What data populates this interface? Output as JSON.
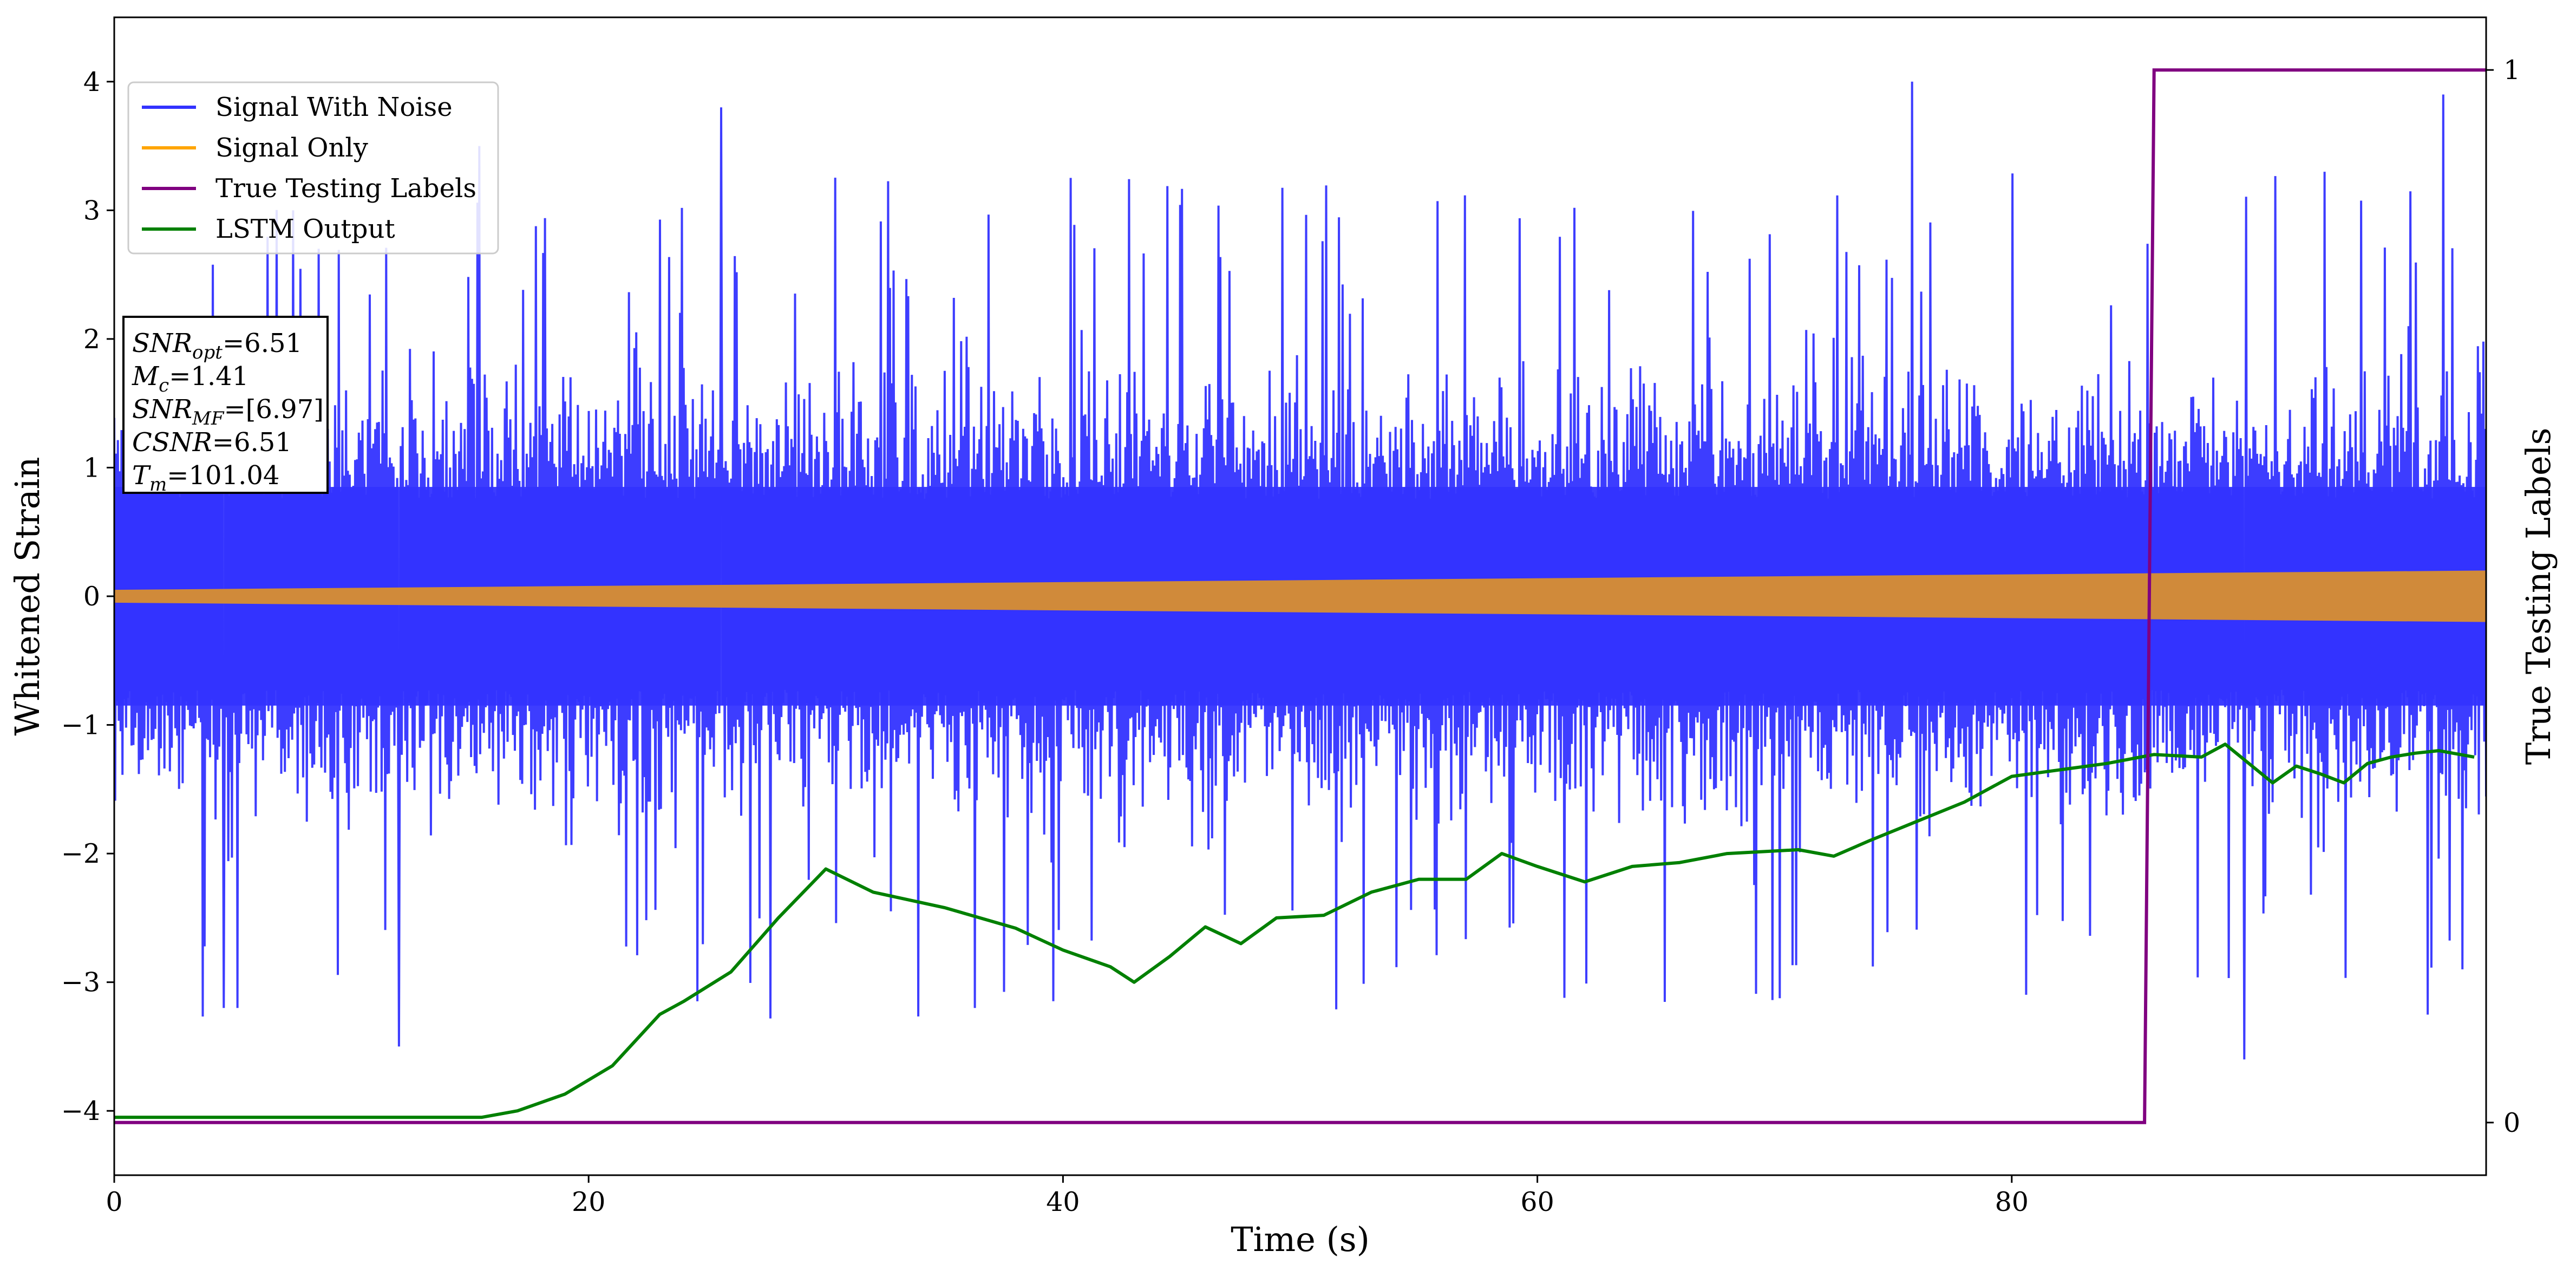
{
  "chart_data": {
    "type": "line",
    "xlabel": "Time (s)",
    "ylabel": "Whitened Strain",
    "y2label": "True Testing Labels",
    "xlim": [
      0,
      100
    ],
    "ylim": [
      -4.5,
      4.5
    ],
    "y2lim": [
      -0.05,
      1.05
    ],
    "x_ticks": [
      0,
      20,
      40,
      60,
      80
    ],
    "x_tick_labels": [
      "0",
      "20",
      "40",
      "60",
      "80"
    ],
    "y_ticks": [
      -4,
      -3,
      -2,
      -1,
      0,
      1,
      2,
      3,
      4
    ],
    "y_tick_labels": [
      "−4",
      "−3",
      "−2",
      "−1",
      "0",
      "1",
      "2",
      "3",
      "4"
    ],
    "y2_ticks": [
      0,
      1
    ],
    "y2_tick_labels": [
      "0",
      "1"
    ],
    "grid": false,
    "legend_position": "top-left",
    "series": [
      {
        "name": "Signal With Noise",
        "color": "#3333ff",
        "axis": "left",
        "description_level": "dense noise band",
        "typical_range": [
          -1.7,
          1.9
        ],
        "spikes": [
          [
            4.6,
            -3.2
          ],
          [
            5.2,
            -3.2
          ],
          [
            12.0,
            -3.5
          ],
          [
            15.4,
            3.5
          ],
          [
            25.6,
            3.8
          ],
          [
            36.3,
            -3.2
          ],
          [
            75.8,
            4.0
          ],
          [
            89.8,
            -3.6
          ],
          [
            93.2,
            3.3
          ],
          [
            98.2,
            3.9
          ],
          [
            99.0,
            -2.9
          ]
        ]
      },
      {
        "name": "Signal Only",
        "color": "#ffa500",
        "axis": "left",
        "amplitude_start": 0.05,
        "amplitude_end": 0.2
      },
      {
        "name": "True Testing Labels",
        "color": "#800080",
        "axis": "right",
        "x": [
          0,
          85.6,
          86.0,
          100
        ],
        "y": [
          0,
          0,
          1,
          1
        ]
      },
      {
        "name": "LSTM Output",
        "color": "#008000",
        "axis": "left",
        "x": [
          0,
          15.5,
          17,
          19,
          21,
          23,
          24,
          26,
          28,
          30,
          32,
          35,
          38,
          40,
          42,
          43,
          44.5,
          46,
          47.5,
          49,
          51,
          53,
          55,
          57,
          58.5,
          60,
          62,
          64,
          66,
          68,
          70,
          71,
          72.5,
          74,
          76,
          78,
          80,
          82,
          84,
          86,
          88,
          89,
          90,
          91,
          92,
          93,
          94,
          95,
          96,
          97,
          98,
          99.5
        ],
        "y": [
          -4.05,
          -4.05,
          -4.0,
          -3.87,
          -3.65,
          -3.25,
          -3.15,
          -2.92,
          -2.5,
          -2.12,
          -2.3,
          -2.42,
          -2.58,
          -2.75,
          -2.88,
          -3.0,
          -2.8,
          -2.57,
          -2.7,
          -2.5,
          -2.48,
          -2.3,
          -2.2,
          -2.2,
          -2.0,
          -2.1,
          -2.22,
          -2.1,
          -2.07,
          -2.0,
          -1.98,
          -1.97,
          -2.02,
          -1.9,
          -1.75,
          -1.6,
          -1.4,
          -1.35,
          -1.3,
          -1.23,
          -1.25,
          -1.15,
          -1.3,
          -1.45,
          -1.32,
          -1.38,
          -1.45,
          -1.3,
          -1.25,
          -1.22,
          -1.2,
          -1.25
        ]
      }
    ],
    "annotation_lines": [
      {
        "pre": "SNR",
        "sub": "opt",
        "post": "=6.51"
      },
      {
        "pre": "M",
        "sub": "c",
        "post": "=1.41"
      },
      {
        "pre": "SNR",
        "sub": "MF",
        "post": "=[6.97]"
      },
      {
        "pre": "CSNR",
        "sub": "",
        "post": "=6.51"
      },
      {
        "pre": "T",
        "sub": "m",
        "post": "=101.04"
      }
    ]
  }
}
